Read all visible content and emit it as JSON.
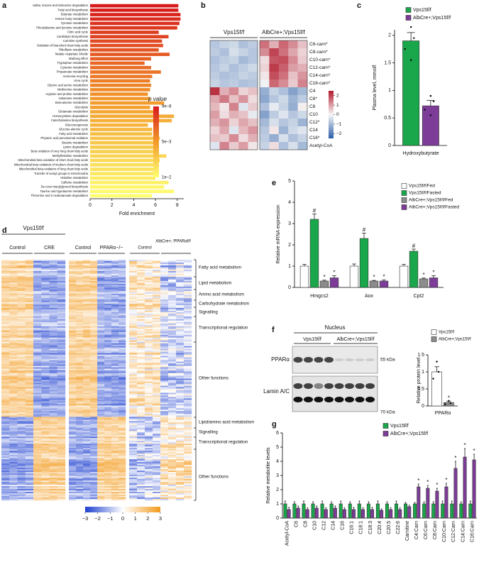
{
  "chart_data": [
    {
      "panel_label": "a",
      "type": "barh",
      "categories": [
        "Valine, leucine and isoleucine degradation",
        "Fatty acid biosynthesis",
        "Butyrate metabolism",
        "Ketone body metabolism",
        "Tyrosine metabolism",
        "Phenylalanine and tyrosine metabolism",
        "Citric acid cycle",
        "Cardiolipin biosynthesis",
        "Carnitine synthesis",
        "Oxidation of branched chain fatty acids",
        "Riboflavin metabolism",
        "Malate-Aspartate Shuttle",
        "Warburg effect",
        "Tryptophan metabolism",
        "Cysteine metabolism",
        "Propanoate metabolism",
        "Ammonia recycling",
        "Urea cycle",
        "Glycine and serine metabolism",
        "Methionine metabolism",
        "Arginine and proline metabolism",
        "Galactose metabolism",
        "Beta-alanine metabolism",
        "Glycolysis",
        "Glutamate metabolism",
        "Homocysteine degradation",
        "Catecholamine biosynthesis",
        "Gluconeogenesis",
        "Glucose-alanine cycle",
        "Fatty acid metabolism",
        "Phytanic acid peroxisomal oxidation",
        "Betaine metabolism",
        "Lysine degradation",
        "Beta oxidation of very long chain fatty acids",
        "Methylhistidine metabolism",
        "Mitochondrial beta oxidation of short chain fatty acids",
        "Mitochondrial beta oxidation of medium chain fatty acids",
        "Mitochondrial beta-oxidation of long chain fatty acids",
        "Transfer of acetyl groups to mitochondria",
        "Histidine metabolism",
        "Caffeine metabolism",
        "De novo triacylglycerol biosynthesis",
        "Taurine and hypotaurine metabolism",
        "Threonine and 2-oxobutanoate degradation"
      ],
      "values": [
        8.1,
        8.1,
        8.3,
        8.3,
        8.2,
        8.0,
        6.3,
        7.2,
        6.6,
        6.7,
        6.3,
        7.3,
        5.6,
        5.0,
        5.6,
        6.5,
        5.7,
        5.5,
        5.6,
        5.5,
        5.3,
        5.5,
        6.8,
        5.5,
        5.9,
        7.7,
        7.5,
        5.3,
        5.7,
        5.7,
        6.4,
        6.0,
        5.8,
        6.1,
        7.0,
        6.4,
        6.2,
        6.1,
        6.1,
        6.0,
        7.2,
        6.8,
        7.7,
        5.7
      ],
      "xlim": [
        0,
        8.6
      ],
      "xticks": [
        0,
        2,
        4,
        6,
        8
      ],
      "xlabel": "Fold enrichment",
      "colorbar": {
        "title": "p value",
        "labels": [
          "9e−8",
          "5e−3",
          "1e−2"
        ],
        "colors": [
          "#d7191c",
          "#f39a2b",
          "#ffff70"
        ]
      }
    },
    {
      "panel_label": "b",
      "type": "heatmap",
      "groups": [
        "Vps15f/f",
        "AlbCre+;Vps15f/f"
      ],
      "rows": [
        "C6-carn*",
        "C8-carn*",
        "C10-carn*",
        "C12-carn*",
        "C14-carn*",
        "C16-carn*",
        "C4",
        "C6*",
        "C8",
        "C10",
        "C12*",
        "C14",
        "C16*",
        "Acetyl-CoA"
      ],
      "values": [
        [
          -0.8,
          -0.6,
          -0.5,
          -0.9,
          -0.7,
          1.5,
          0.8,
          1.6,
          1.2,
          0.6
        ],
        [
          -0.7,
          -0.9,
          -0.4,
          -0.6,
          -0.8,
          1.2,
          2.0,
          1.5,
          0.9,
          0.4
        ],
        [
          -0.9,
          -0.7,
          -0.6,
          -1.0,
          -0.8,
          0.3,
          1.8,
          1.9,
          1.2,
          0.5
        ],
        [
          -0.8,
          -0.6,
          -0.9,
          -0.7,
          -0.5,
          0.4,
          2.1,
          1.7,
          1.0,
          0.8
        ],
        [
          -0.7,
          -0.9,
          -0.8,
          -0.6,
          -0.7,
          0.2,
          1.9,
          1.5,
          0.6,
          1.1
        ],
        [
          -0.6,
          -0.8,
          -0.7,
          -0.9,
          -0.8,
          -0.1,
          1.6,
          1.2,
          0.5,
          1.3
        ],
        [
          2.2,
          0.8,
          1.2,
          0.4,
          0.6,
          -1.2,
          -0.6,
          -0.9,
          -1.4,
          -1.0
        ],
        [
          0.9,
          1.4,
          0.6,
          1.1,
          0.3,
          -1.3,
          -0.8,
          -0.5,
          -1.1,
          -0.7
        ],
        [
          0.7,
          0.2,
          1.3,
          -0.3,
          0.5,
          -0.9,
          -0.2,
          -0.6,
          -1.2,
          0.1
        ],
        [
          1.0,
          0.3,
          0.8,
          0.6,
          -0.2,
          -1.4,
          -0.7,
          -0.3,
          -0.8,
          -0.5
        ],
        [
          0.8,
          1.1,
          0.4,
          0.9,
          0.6,
          -1.0,
          -0.4,
          -0.8,
          -0.6,
          -1.1
        ],
        [
          0.4,
          0.9,
          -0.3,
          0.7,
          1.1,
          -0.8,
          0.2,
          -1.1,
          -0.5,
          -0.3
        ],
        [
          0.6,
          0.5,
          1.2,
          0.3,
          0.8,
          -0.7,
          -1.2,
          -0.4,
          -0.9,
          -0.6
        ],
        [
          -0.3,
          1.3,
          0.5,
          1.0,
          0.2,
          -0.6,
          0.3,
          -0.9,
          -0.4,
          -1.0
        ]
      ],
      "zlim": [
        -2.5,
        2.5
      ],
      "zticks": [
        2,
        1,
        0,
        {
          "value": -1,
          "label": "−1"
        },
        {
          "value": -2,
          "label": "−2"
        }
      ],
      "colors": [
        "#2b5fa8",
        "#f7f7f7",
        "#b2182b"
      ]
    },
    {
      "panel_label": "c",
      "type": "bar",
      "categories": [
        "Hydroxybutyrate"
      ],
      "series": [
        {
          "name": "Vps15f/f",
          "color": "#1aa64a",
          "values": [
            1.9
          ],
          "errors": [
            0.15
          ],
          "points": [
            [
              2.15,
              1.95,
              1.75,
              1.55
            ]
          ]
        },
        {
          "name": "AlbCre+;Vps15f/f",
          "color": "#7d3c98",
          "values": [
            0.72
          ],
          "errors": [
            0.1
          ],
          "points": [
            [
              0.9,
              0.8,
              0.65,
              0.55
            ]
          ],
          "stars": [
            "*"
          ]
        }
      ],
      "ylim": [
        0,
        2.1
      ],
      "yticks": [
        0,
        0.5,
        1,
        1.5,
        2
      ],
      "ylabel": "Plasma level, mmol/l"
    },
    {
      "panel_label": "d",
      "type": "expression-heatmap",
      "headers": [
        {
          "title": "Vps15f/f",
          "conditions": [
            "Control",
            "CRE"
          ]
        },
        {
          "conditions": [
            "Control",
            "PPARα−/−"
          ]
        },
        {
          "conditions": [
            "Control",
            "AlbCre+; PPARαf/f"
          ]
        }
      ],
      "functions": [
        "Fatty acid metabolism",
        "Lipid metabolism",
        "Amino acid metabolism",
        "Carbohydrate metabolism",
        "Signalling",
        "Transcriptional regulation",
        "Other functions",
        "Lipid/amino acid metabolism",
        "Signalling",
        "Transcriptional regulation",
        "Other functions"
      ],
      "colorbar": {
        "ticks": [
          {
            "value": -3,
            "label": "−3"
          },
          {
            "value": -2,
            "label": "−2"
          },
          {
            "value": -1,
            "label": "−1"
          },
          0,
          1,
          2,
          3
        ],
        "lim": [
          -3,
          3
        ],
        "colors": [
          "#1d3fcf",
          "#ffffff",
          "#f39a1c"
        ]
      }
    },
    {
      "panel_label": "e",
      "type": "bar",
      "categories": [
        "Hmgcs2",
        "Aox",
        "Cpt2"
      ],
      "series": [
        {
          "name": "Vps15f/f/Fed",
          "color": "#ffffff",
          "values": [
            1.0,
            1.0,
            1.0
          ],
          "errors": [
            0.08,
            0.1,
            0.08
          ]
        },
        {
          "name": "Vps15f/f/Fasted",
          "color": "#1aa64a",
          "values": [
            3.2,
            2.3,
            1.7
          ],
          "errors": [
            0.25,
            0.25,
            0.1
          ],
          "stars": [
            "#",
            "#",
            "#"
          ]
        },
        {
          "name": "AlbCre+;Vps15f/f/Fed",
          "color": "#8c8c8c",
          "values": [
            0.3,
            0.3,
            0.4
          ],
          "errors": [
            0.04,
            0.03,
            0.04
          ],
          "stars": [
            "*",
            "*",
            "*"
          ]
        },
        {
          "name": "AlbCre+;Vps15f/f/Fasted",
          "color": "#7d3c98",
          "values": [
            0.45,
            0.3,
            0.45
          ],
          "errors": [
            0.1,
            0.05,
            0.1
          ],
          "stars": [
            "*",
            "*",
            "*"
          ]
        }
      ],
      "ylim": [
        0,
        5
      ],
      "yticks": [
        0,
        1,
        2,
        3,
        4,
        5
      ],
      "ylabel": "Relative mRNA expression"
    },
    {
      "panel_label": "f",
      "type": "bar",
      "categories": [
        "PPARα"
      ],
      "blot": {
        "title": "Nucleus",
        "groups": [
          "Vps15f/f",
          "AlbCre+;Vps15f/f"
        ],
        "rows": [
          "PPARα",
          "Lamin A/C"
        ],
        "markers": [
          "55 kDa",
          "70 kDa"
        ]
      },
      "series": [
        {
          "name": "Vps15f/f",
          "color": "#ffffff",
          "values": [
            1.0
          ],
          "errors": [
            0.15
          ],
          "points": [
            [
              1.3,
              1.0,
              0.8
            ]
          ]
        },
        {
          "name": "AlbCre+;Vps15f/f",
          "color": "#8c8c8c",
          "values": [
            0.1
          ],
          "errors": [
            0.04
          ],
          "points": [
            [
              0.15,
              0.08,
              0.05
            ]
          ],
          "stars": [
            "*"
          ]
        }
      ],
      "ylim": [
        0,
        1.5
      ],
      "yticks": [
        0,
        0.5,
        1,
        1.5
      ],
      "ylabel": "Relative protein level"
    },
    {
      "panel_label": "g",
      "type": "bar",
      "categories": [
        "Acetyl-CoA",
        "C6",
        "C8",
        "C10",
        "C12",
        "C14",
        "C16",
        "C16:1",
        "C18:1",
        "C18:3",
        "C20:4",
        "C20:5",
        "C22:6",
        "Carnitine",
        "C4:Carn",
        "C6:Carn",
        "C8:Carn",
        "C10:Carn",
        "C12:Carn",
        "C14:Carn",
        "C16:Carn"
      ],
      "series": [
        {
          "name": "Vps15f/f",
          "color": "#1aa64a",
          "values": [
            1,
            1,
            1,
            1,
            1,
            1,
            1,
            1,
            1,
            1,
            1,
            1,
            1,
            1,
            1,
            1,
            1,
            1,
            1,
            1,
            1
          ],
          "errors": [
            0.2,
            0.15,
            0.2,
            0.15,
            0.2,
            0.15,
            0.2,
            0.15,
            0.2,
            0.15,
            0.2,
            0.15,
            0.2,
            0.1,
            0.1,
            0.15,
            0.15,
            0.2,
            0.2,
            0.15,
            0.2
          ]
        },
        {
          "name": "AlbCre+;Vps15f/f",
          "color": "#7d3c98",
          "values": [
            0.6,
            0.7,
            0.6,
            0.7,
            0.6,
            0.7,
            0.6,
            0.6,
            0.6,
            0.6,
            0.55,
            0.6,
            0.6,
            0.8,
            2.2,
            2.1,
            1.9,
            2.2,
            3.5,
            4.3,
            4.1
          ],
          "errors": [
            0.15,
            0.15,
            0.12,
            0.15,
            0.12,
            0.15,
            0.12,
            0.15,
            0.12,
            0.15,
            0.1,
            0.12,
            0.12,
            0.1,
            0.2,
            0.2,
            0.2,
            0.25,
            0.5,
            0.6,
            0.4
          ],
          "stars": [
            null,
            null,
            null,
            null,
            null,
            null,
            null,
            null,
            null,
            null,
            null,
            null,
            null,
            null,
            "*",
            "*",
            "*",
            "*",
            "*",
            "*",
            "*"
          ]
        }
      ],
      "ylim": [
        0,
        6
      ],
      "yticks": [
        0,
        1,
        2,
        3,
        4,
        5,
        6
      ],
      "ylabel": "Relative metabolite levels"
    }
  ]
}
